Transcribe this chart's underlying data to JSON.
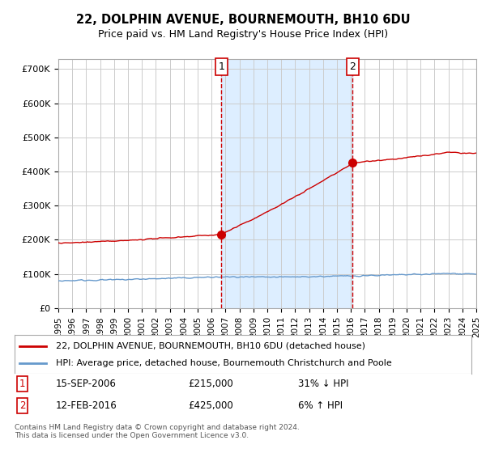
{
  "title": "22, DOLPHIN AVENUE, BOURNEMOUTH, BH10 6DU",
  "subtitle": "Price paid vs. HM Land Registry's House Price Index (HPI)",
  "legend_line1": "22, DOLPHIN AVENUE, BOURNEMOUTH, BH10 6DU (detached house)",
  "legend_line2": "HPI: Average price, detached house, Bournemouth Christchurch and Poole",
  "point1_date": "15-SEP-2006",
  "point1_price": 215000,
  "point1_label": "31% ↓ HPI",
  "point2_date": "12-FEB-2016",
  "point2_price": 425000,
  "point2_label": "6% ↑ HPI",
  "footnote": "Contains HM Land Registry data © Crown copyright and database right 2024.\nThis data is licensed under the Open Government Licence v3.0.",
  "hpi_color": "#6699cc",
  "price_color": "#cc0000",
  "point_color": "#cc0000",
  "shading_color": "#ddeeff",
  "vline_color": "#cc0000",
  "grid_color": "#cccccc",
  "bg_color": "#ffffff",
  "ylim": [
    0,
    730000
  ],
  "yticks": [
    0,
    100000,
    200000,
    300000,
    400000,
    500000,
    600000,
    700000
  ],
  "ytick_labels": [
    "£0",
    "£100K",
    "£200K",
    "£300K",
    "£400K",
    "£500K",
    "£600K",
    "£700K"
  ],
  "year_start": 1995,
  "year_end": 2025
}
